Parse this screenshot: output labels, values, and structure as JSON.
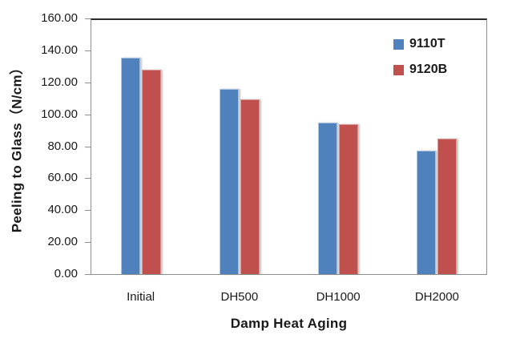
{
  "chart_data": {
    "type": "bar",
    "title": "",
    "categories": [
      "Initial",
      "DH500",
      "DH1000",
      "DH2000"
    ],
    "series": [
      {
        "name": "9110T",
        "color": "#4F81BD",
        "border_color": "#aac3e0",
        "values": [
          136.5,
          116.5,
          95.5,
          77.5
        ]
      },
      {
        "name": "9120B",
        "color": "#C0504D",
        "border_color": "#d89694",
        "values": [
          128.5,
          110.0,
          94.5,
          85.5
        ]
      }
    ],
    "xlabel": "Damp Heat Aging",
    "ylabel": "Peeling to Glass（N/cm）",
    "ylim": [
      0,
      160
    ],
    "ytick_step": 20,
    "ytick_labels": [
      "160.00",
      "140.00",
      "120.00",
      "100.00",
      "80.00",
      "60.00",
      "40.00",
      "20.00",
      "0.00"
    ],
    "grid": false,
    "legend_position": "top-right-inside",
    "axis_line_color": "#8e8e8e",
    "plot_border_top_color": "#2b2b2b"
  }
}
